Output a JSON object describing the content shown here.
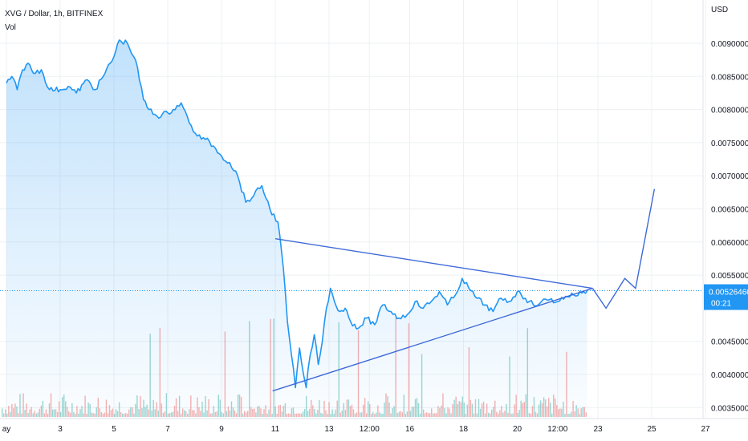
{
  "header": {
    "symbol_line": "XVG / Dollar, 1h, BITFINEX",
    "indicator": "Vol"
  },
  "price_axis": {
    "unit": "USD",
    "ticks": [
      "0.00900000",
      "0.00850000",
      "0.00800000",
      "0.00750000",
      "0.00700000",
      "0.00650000",
      "0.00600000",
      "0.00550000",
      "0.00450000",
      "0.00400000",
      "0.00350000"
    ]
  },
  "time_axis": {
    "ticks": [
      "ay",
      "3",
      "5",
      "7",
      "9",
      "11",
      "13",
      "12:00",
      "16",
      "18",
      "20",
      "12:00",
      "23",
      "25",
      "27"
    ]
  },
  "last_price": {
    "price": "0.00526460",
    "countdown": "00:21"
  },
  "colors": {
    "line": "#2196f3",
    "drawing": "#3e6ad8",
    "grid": "#eef0f3",
    "badge": "#2196f3",
    "vol_up": "#26a69a",
    "vol_down": "#ef5350"
  },
  "chart_data": {
    "type": "area",
    "title": "XVG / Dollar, 1h, BITFINEX",
    "ylabel": "USD",
    "xlabel": "",
    "y_range": [
      0.0032,
      0.0094
    ],
    "x_range_days": [
      1,
      28
    ],
    "grid": true,
    "legend": "none",
    "series": [
      {
        "name": "XVG / Dollar",
        "x_day": [
          1.0,
          1.2,
          1.4,
          1.6,
          1.8,
          2.0,
          2.3,
          2.6,
          3.0,
          3.3,
          3.6,
          4.0,
          4.3,
          4.6,
          5.0,
          5.2,
          5.5,
          5.8,
          6.1,
          6.3,
          6.6,
          7.0,
          7.2,
          7.5,
          7.8,
          8.1,
          8.4,
          8.7,
          9.0,
          9.3,
          9.6,
          9.9,
          10.2,
          10.5,
          10.8,
          11.1,
          11.3,
          11.45,
          11.6,
          11.75,
          11.9,
          12.05,
          12.15,
          12.3,
          12.45,
          12.6,
          12.75,
          12.9,
          13.05,
          13.2,
          13.4,
          13.6,
          13.8,
          14.1,
          14.4,
          14.7,
          15.0,
          15.3,
          15.6,
          15.9,
          16.2,
          16.5,
          16.8,
          17.1,
          17.4,
          17.7,
          17.95,
          18.2,
          18.5,
          18.8,
          19.1,
          19.4,
          19.7,
          20.0,
          20.3,
          20.6,
          20.9,
          21.2,
          21.5,
          21.8,
          22.1,
          22.4,
          22.6
        ],
        "y": [
          0.0084,
          0.0085,
          0.0083,
          0.0086,
          0.0087,
          0.00855,
          0.0086,
          0.0083,
          0.0083,
          0.00835,
          0.00825,
          0.00845,
          0.0083,
          0.0085,
          0.0088,
          0.00905,
          0.009,
          0.00875,
          0.00815,
          0.008,
          0.0079,
          0.00795,
          0.008,
          0.0081,
          0.0078,
          0.0076,
          0.00755,
          0.00745,
          0.0073,
          0.0072,
          0.007,
          0.0066,
          0.0067,
          0.00685,
          0.0065,
          0.0063,
          0.0056,
          0.0048,
          0.0043,
          0.0038,
          0.0044,
          0.004,
          0.0038,
          0.0043,
          0.0046,
          0.00415,
          0.0045,
          0.005,
          0.0053,
          0.0051,
          0.00495,
          0.005,
          0.0048,
          0.0047,
          0.00485,
          0.00475,
          0.00505,
          0.00495,
          0.00485,
          0.0049,
          0.0051,
          0.005,
          0.0051,
          0.00525,
          0.00505,
          0.0052,
          0.00545,
          0.0053,
          0.00515,
          0.00505,
          0.00495,
          0.00515,
          0.0051,
          0.00525,
          0.00515,
          0.00505,
          0.0051,
          0.00513,
          0.0051,
          0.00518,
          0.0052,
          0.00523,
          0.00526
        ]
      }
    ],
    "volume_bars": 360,
    "drawings": [
      {
        "name": "upper-trendline",
        "x_day": [
          11.0,
          22.8
        ],
        "y": [
          0.00605,
          0.0053
        ]
      },
      {
        "name": "lower-trendline",
        "x_day": [
          10.9,
          22.8
        ],
        "y": [
          0.00375,
          0.0053
        ]
      },
      {
        "name": "projection-path",
        "x_day": [
          22.8,
          23.3,
          24.0,
          24.4,
          25.1
        ],
        "y": [
          0.0053,
          0.005,
          0.00545,
          0.0053,
          0.0068
        ]
      }
    ]
  }
}
